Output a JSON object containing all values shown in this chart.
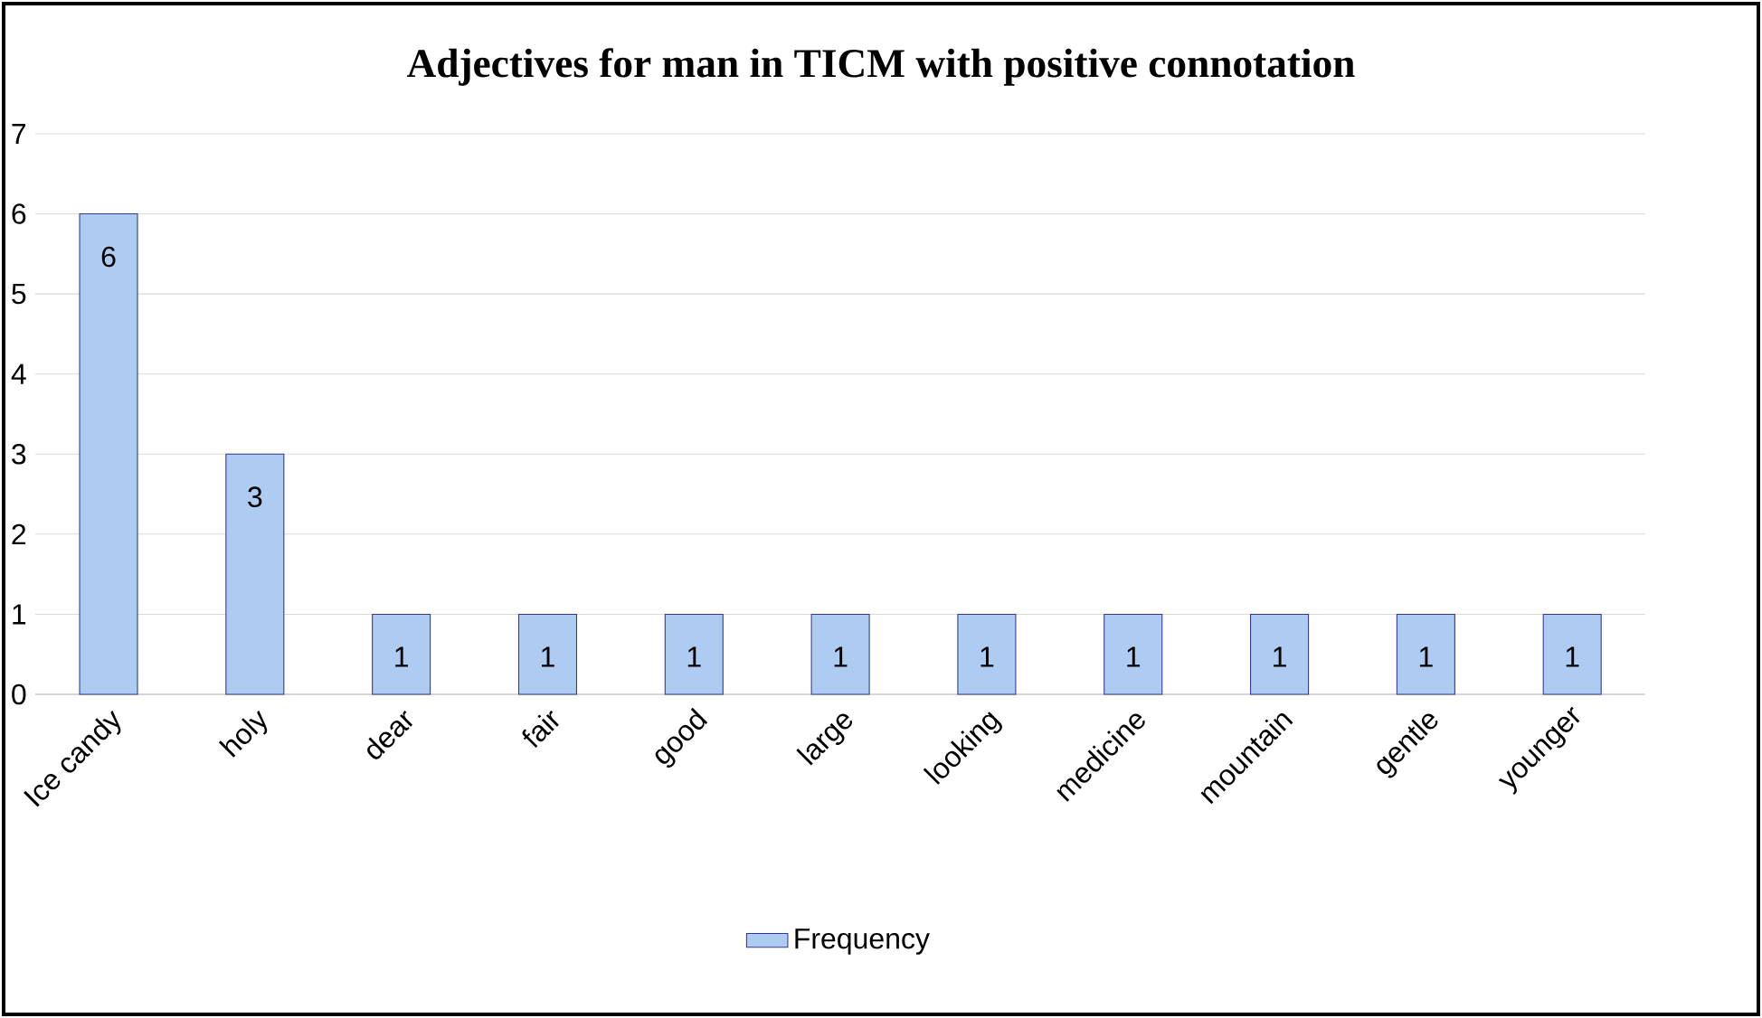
{
  "chart_data": {
    "type": "bar",
    "title": "Adjectives for man in TICM with positive connotation",
    "categories": [
      "Ice candy",
      "holy",
      "dear",
      "fair",
      "good",
      "large",
      "looking",
      "medicine",
      "mountain",
      "gentle",
      "younger"
    ],
    "series": [
      {
        "name": "Frequency",
        "color": "#aecbf2",
        "values": [
          6,
          3,
          1,
          1,
          1,
          1,
          1,
          1,
          1,
          1,
          1
        ]
      }
    ],
    "ylim": [
      0,
      7
    ],
    "yticks": [
      0,
      1,
      2,
      3,
      4,
      5,
      6,
      7
    ],
    "grid": "y",
    "data_labels": true,
    "legend": "bottom"
  }
}
